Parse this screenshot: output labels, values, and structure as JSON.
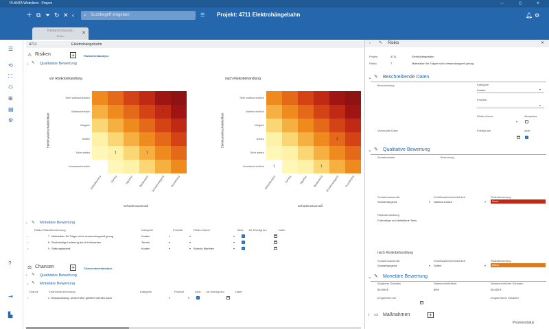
{
  "app": {
    "title": "PLANTA Webclient - Project",
    "search_placeholder": "Suchbegriff eingeben",
    "project_title": "Projekt: 4711 Elektrohängebahn"
  },
  "tab": {
    "title": "Risiken/Chancen",
    "subtitle": "Risiko"
  },
  "header": {
    "id": "4711",
    "name": "Elektrohängebahn"
  },
  "risks": {
    "title": "Risiken",
    "analysis_link": "Risikotrendanalyse",
    "qualitative": "Qualitative Bewertung",
    "monetary": "Monetäre Bewertung"
  },
  "chart_data": [
    {
      "type": "heatmap",
      "title": "vor Risikobehandlung",
      "ylabel": "Eintrittswahrscheinlichkeit",
      "xlabel": "Schadensausmaß",
      "y_categories": [
        "Sehr wahrscheinlich",
        "Wahrscheinlich",
        "Möglich",
        "Selten",
        "Sehr selten",
        "Unwahrscheinlich"
      ],
      "x_categories": [
        "Unbedeutend",
        "Gering",
        "Spürbar",
        "Bedeutend",
        "Schwerwiegend",
        "Gravierend"
      ],
      "colors": [
        [
          "#ef8a1f",
          "#e46a1a",
          "#d44316",
          "#c02a14",
          "#9e1514",
          "#8e1313"
        ],
        [
          "#f6b042",
          "#ef8a1f",
          "#e46a1a",
          "#d44316",
          "#c02a14",
          "#9e1514"
        ],
        [
          "#fbd675",
          "#f6b042",
          "#ef8a1f",
          "#e46a1a",
          "#d44316",
          "#c02a14"
        ],
        [
          "#fef1a8",
          "#fbd675",
          "#f6b042",
          "#ef8a1f",
          "#e46a1a",
          "#d44316"
        ],
        [
          "#fff7b8",
          "#fef1a8",
          "#fbd675",
          "#f6b042",
          "#ef8a1f",
          "#e46a1a"
        ],
        [
          "#ffffff",
          "#fff7b8",
          "#fef1a8",
          "#fbd675",
          "#f6b042",
          "#ef8a1f"
        ]
      ],
      "annotations": [
        {
          "row": 1,
          "col": 4,
          "value": "1"
        },
        {
          "row": 4,
          "col": 1,
          "value": "1"
        },
        {
          "row": 4,
          "col": 3,
          "value": "1"
        }
      ]
    },
    {
      "type": "heatmap",
      "title": "nach Risikobehandlung",
      "ylabel": "Eintrittswahrscheinlichkeit",
      "xlabel": "Schadensausmaß",
      "y_categories": [
        "Sehr wahrscheinlich",
        "Wahrscheinlich",
        "Möglich",
        "Selten",
        "Sehr selten",
        "Unwahrscheinlich"
      ],
      "x_categories": [
        "Unbedeutend",
        "Gering",
        "Spürbar",
        "Bedeutend",
        "Schwerwiegend",
        "Gravierend"
      ],
      "colors": [
        [
          "#ef8a1f",
          "#e46a1a",
          "#d44316",
          "#c02a14",
          "#9e1514",
          "#8e1313"
        ],
        [
          "#f6b042",
          "#ef8a1f",
          "#e46a1a",
          "#d44316",
          "#c02a14",
          "#9e1514"
        ],
        [
          "#fbd675",
          "#f6b042",
          "#ef8a1f",
          "#e46a1a",
          "#d44316",
          "#c02a14"
        ],
        [
          "#fef1a8",
          "#fbd675",
          "#f6b042",
          "#ef8a1f",
          "#e46a1a",
          "#d44316"
        ],
        [
          "#fff7b8",
          "#fef1a8",
          "#fbd675",
          "#f6b042",
          "#ef8a1f",
          "#e46a1a"
        ],
        [
          "#ffffff",
          "#fff7b8",
          "#fef1a8",
          "#fbd675",
          "#f6b042",
          "#ef8a1f"
        ]
      ],
      "annotations": [
        {
          "row": 3,
          "col": 4,
          "value": "1"
        },
        {
          "row": 5,
          "col": 0,
          "value": "1"
        },
        {
          "row": 5,
          "col": 3,
          "value": "1"
        }
      ]
    }
  ],
  "risk_table": {
    "headers": [
      "Risiko",
      "Risikobezeichnung",
      "Kategorie",
      "Priorität",
      "Risiko-Owner",
      "Aktiv",
      "1st Erledigt am",
      "Datei"
    ],
    "rows": [
      {
        "no": "7",
        "name": "Materialien für Träger nicht verwendungsreif genug",
        "cat": "Kosten",
        "owner": ""
      },
      {
        "no": "8",
        "name": "Rechtzeitige Lieferung durch Lieferanten",
        "cat": "Termin",
        "owner": ""
      },
      {
        "no": "9",
        "name": "Sattungsausfall",
        "cat": "Kosten",
        "owner": "Antonio Martinez"
      }
    ]
  },
  "chances": {
    "title": "Chancen",
    "analysis_link": "Chancentrendanalyse",
    "qualitative": "Qualitative Bewertung",
    "monetary": "Monetäre Bewertung",
    "headers": [
      "Chance",
      "Chancenbezeichnung",
      "Kategorie",
      "Priorität",
      "Aktiv",
      "1st Erledigt am",
      "Datei"
    ],
    "rows": [
      {
        "no": "3",
        "name": "Bonuszahlung, wenn früher geliefert werden kann"
      }
    ]
  },
  "panel": {
    "title": "Risiko",
    "project_label": "Projekt",
    "project_no": "4711",
    "project_name": "Elektrohängebahn",
    "risk_label": "Risiko",
    "risk_no": "7",
    "risk_name": "Materialien für Träger nicht verwendungsreif genug",
    "desc_section": "Beschreibende Daten",
    "desc_label": "Beschreibung",
    "category_label": "Kategorie",
    "category_value": "Kosten",
    "priority_label": "Priorität",
    "owner_label": "Risiko-Owner",
    "accepted_label": "Akzeptanz",
    "linked_label": "Verknüpfte Datei",
    "done_label": "Erledigt am",
    "active_label": "Aktiv",
    "qual_section": "Qualitative Bewertung",
    "cause_label": "Schadensfolle",
    "effect_label": "Bedrohung",
    "impact_label": "Schadensausmaß",
    "impact_value": "Schwerwiegend",
    "prob_label": "Eintrittswahrscheinlichkeit",
    "prob_value": "Wahrscheinlich",
    "rating_label": "Risikobewertung",
    "rating_value": "Hoch",
    "rating_color": "#c02a14",
    "treatment_label": "Risikobehandlung",
    "treatment_value": "Frühzeitige und detaillierte Tests",
    "after_label": "nach Risikobehandlung",
    "after_impact": "Schwerwiegend",
    "after_prob": "Selten",
    "after_rating": "Mittel",
    "after_color": "#e07b1a",
    "money_section": "Monetäre Bewertung",
    "damage_label": "Möglicher Schaden",
    "damage_value": "50.000 €",
    "prob_pct_label": "Wahrscheinlichkeit",
    "prob_pct_value": "80%",
    "expected_label": "Wahrscheinlicher Schaden",
    "expected_value": "40.000 €",
    "occurred_label": "Eingetreten am",
    "occurred_damage_label": "Eingetretener Schaden",
    "measures_section": "Maßnahmen",
    "status": "Prozessstatus"
  }
}
